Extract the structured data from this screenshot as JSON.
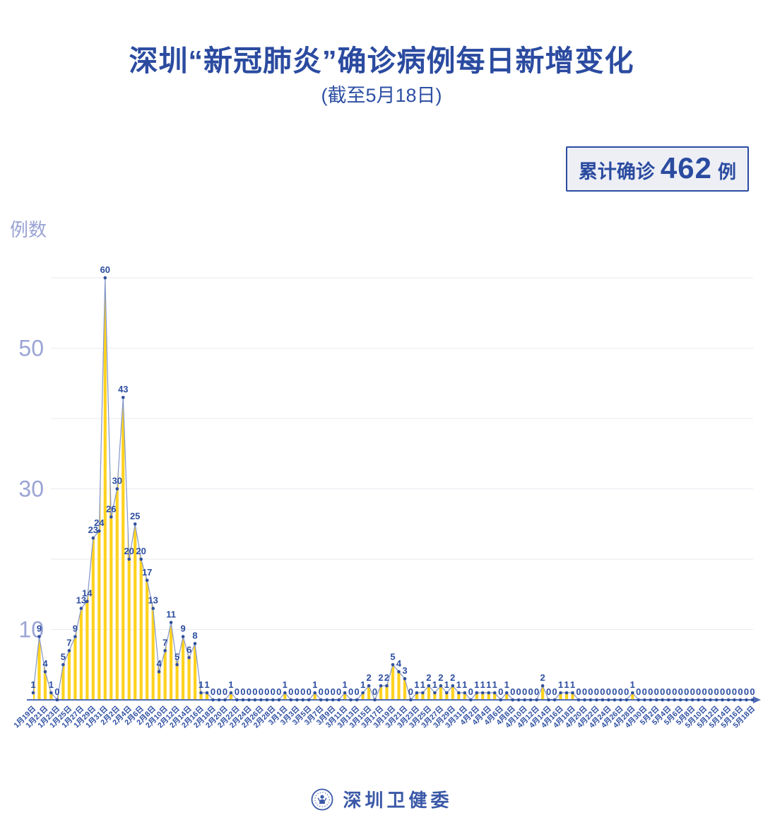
{
  "title": "深圳“新冠肺炎”确诊病例每日新增变化",
  "subtitle": "(截至5月18日)",
  "badge": {
    "label": "累计确诊",
    "value": "462",
    "unit": "例"
  },
  "footer": {
    "org": "深圳卫健委"
  },
  "colors": {
    "title_blue": "#2b4ba0",
    "value_label_blue": "#2c4da0",
    "tick_label_blue": "#2e4fa3",
    "axis_blue": "#4f6cb4",
    "line_blue": "#8496c9",
    "dot_blue": "#32519e",
    "stripe_yellow": "#FFD21E",
    "grid_gray": "#e9eaf1",
    "y_tick_light": "#9aa4d4",
    "badge_bg": "#edeff5"
  },
  "chart_data": {
    "type": "area",
    "title": "深圳“新冠肺炎”确诊病例每日新增变化",
    "subtitle": "(截至5月18日)",
    "ylabel": "例数",
    "xlabel": "",
    "ylim": [
      0,
      62
    ],
    "gridlines": [
      10,
      20,
      30,
      40,
      50,
      60
    ],
    "y_ticks_labeled": [
      50,
      30,
      10
    ],
    "x_tick_step": 2,
    "legend": null,
    "x": [
      "1月19日",
      "1月20日",
      "1月21日",
      "1月22日",
      "1月23日",
      "1月24日",
      "1月25日",
      "1月26日",
      "1月27日",
      "1月28日",
      "1月29日",
      "1月30日",
      "1月31日",
      "2月1日",
      "2月2日",
      "2月3日",
      "2月4日",
      "2月5日",
      "2月6日",
      "2月7日",
      "2月8日",
      "2月9日",
      "2月10日",
      "2月11日",
      "2月12日",
      "2月13日",
      "2月14日",
      "2月15日",
      "2月16日",
      "2月17日",
      "2月18日",
      "2月19日",
      "2月20日",
      "2月21日",
      "2月22日",
      "2月23日",
      "2月24日",
      "2月25日",
      "2月26日",
      "2月27日",
      "2月28日",
      "2月29日",
      "3月1日",
      "3月2日",
      "3月3日",
      "3月4日",
      "3月5日",
      "3月6日",
      "3月7日",
      "3月8日",
      "3月9日",
      "3月10日",
      "3月11日",
      "3月12日",
      "3月13日",
      "3月14日",
      "3月15日",
      "3月16日",
      "3月17日",
      "3月18日",
      "3月19日",
      "3月20日",
      "3月21日",
      "3月22日",
      "3月23日",
      "3月24日",
      "3月25日",
      "3月26日",
      "3月27日",
      "3月28日",
      "3月29日",
      "3月30日",
      "3月31日",
      "4月1日",
      "4月2日",
      "4月3日",
      "4月4日",
      "4月5日",
      "4月6日",
      "4月7日",
      "4月8日",
      "4月9日",
      "4月10日",
      "4月11日",
      "4月12日",
      "4月13日",
      "4月14日",
      "4月15日",
      "4月16日",
      "4月17日",
      "4月18日",
      "4月19日",
      "4月20日",
      "4月21日",
      "4月22日",
      "4月23日",
      "4月24日",
      "4月25日",
      "4月26日",
      "4月27日",
      "4月28日",
      "4月29日",
      "4月30日",
      "5月1日",
      "5月2日",
      "5月3日",
      "5月4日",
      "5月5日",
      "5月6日",
      "5月7日",
      "5月8日",
      "5月9日",
      "5月10日",
      "5月11日",
      "5月12日",
      "5月13日",
      "5月14日",
      "5月15日",
      "5月16日",
      "5月17日",
      "5月18日"
    ],
    "values": [
      1,
      9,
      4,
      1,
      0,
      5,
      7,
      9,
      13,
      14,
      23,
      24,
      60,
      26,
      30,
      43,
      20,
      25,
      20,
      17,
      13,
      4,
      7,
      11,
      5,
      9,
      6,
      8,
      1,
      1,
      0,
      0,
      0,
      1,
      0,
      0,
      0,
      0,
      0,
      0,
      0,
      0,
      1,
      0,
      0,
      0,
      0,
      1,
      0,
      0,
      0,
      0,
      1,
      0,
      0,
      1,
      2,
      0,
      2,
      2,
      5,
      4,
      3,
      0,
      1,
      1,
      2,
      1,
      2,
      1,
      2,
      1,
      1,
      0,
      1,
      1,
      1,
      1,
      0,
      1,
      0,
      0,
      0,
      0,
      0,
      2,
      0,
      0,
      1,
      1,
      1,
      0,
      0,
      0,
      0,
      0,
      0,
      0,
      0,
      0,
      1,
      0,
      0,
      0,
      0,
      0,
      0,
      0,
      0,
      0,
      0,
      0,
      0,
      0,
      0,
      0,
      0,
      0,
      0,
      0,
      0
    ],
    "total": 462
  }
}
